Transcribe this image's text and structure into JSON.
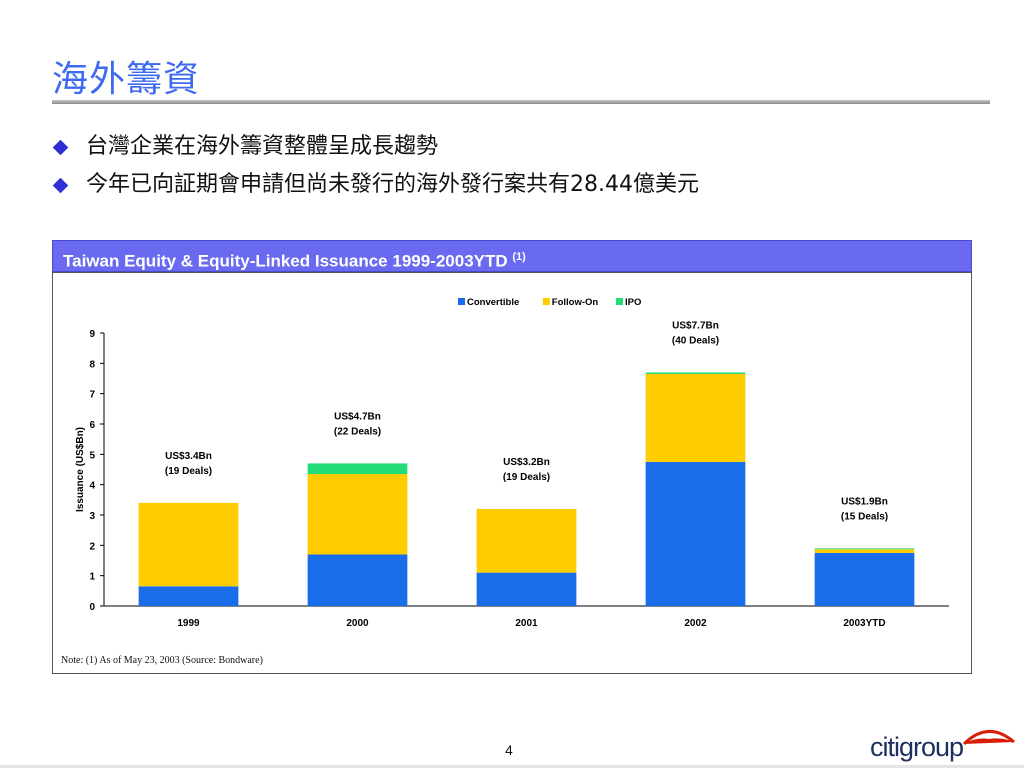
{
  "slide": {
    "title": "海外籌資",
    "bullets": [
      {
        "text": "台灣企業在海外籌資整體呈成長趨勢"
      },
      {
        "text": "今年已向証期會申請但尚未發行的海外發行案共有28.44億美元"
      }
    ],
    "page_number": "4",
    "logo_text": "citigroup"
  },
  "panel": {
    "header_text": "Taiwan Equity & Equity-Linked Issuance 1999-2003YTD",
    "header_sup": "(1)",
    "note": "Note:  (1) As of May 23, 2003 (Source: Bondware)"
  },
  "colors": {
    "Convertible": "#1a6de8",
    "Follow-On": "#ffcc00",
    "IPO": "#22dd77",
    "title": "#3c6bf0",
    "header_bg": "#6a6af0"
  },
  "chart_data": {
    "type": "bar",
    "stacked": true,
    "categories": [
      "1999",
      "2000",
      "2001",
      "2002",
      "2003YTD"
    ],
    "series": [
      {
        "name": "Convertible",
        "values": [
          0.65,
          1.7,
          1.1,
          4.75,
          1.75
        ]
      },
      {
        "name": "Follow-On",
        "values": [
          2.75,
          2.65,
          2.1,
          2.9,
          0.12
        ]
      },
      {
        "name": "IPO",
        "values": [
          0,
          0.35,
          0,
          0.05,
          0.03
        ]
      }
    ],
    "bar_labels": [
      [
        "US$3.4Bn",
        "(19 Deals)"
      ],
      [
        "US$4.7Bn",
        "(22 Deals)"
      ],
      [
        "US$3.2Bn",
        "(19 Deals)"
      ],
      [
        "US$7.7Bn",
        "(40 Deals)"
      ],
      [
        "US$1.9Bn",
        "(15 Deals)"
      ]
    ],
    "ylabel": "Issuance (US$Bn)",
    "xlabel": "",
    "ylim": [
      0,
      9
    ],
    "yticks": [
      0,
      1,
      2,
      3,
      4,
      5,
      6,
      7,
      8,
      9
    ],
    "legend_position": "top"
  }
}
